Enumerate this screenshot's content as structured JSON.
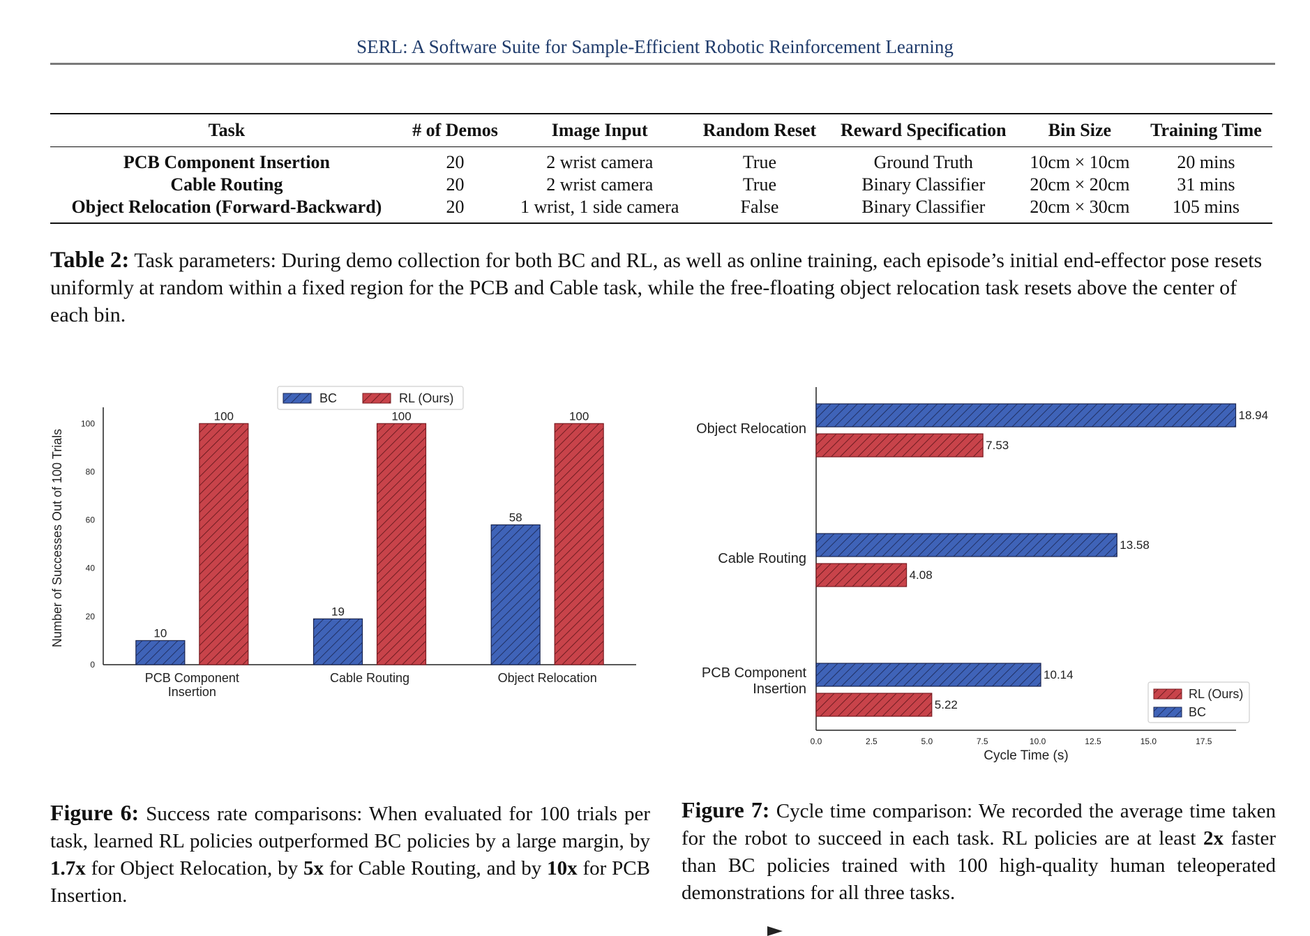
{
  "header": {
    "title": "SERL: A Software Suite for Sample-Efficient Robotic Reinforcement Learning"
  },
  "table": {
    "columns": [
      "Task",
      "# of Demos",
      "Image Input",
      "Random Reset",
      "Reward Specification",
      "Bin Size",
      "Training Time"
    ],
    "rows": [
      [
        "PCB Component Insertion",
        "20",
        "2 wrist camera",
        "True",
        "Ground Truth",
        "10cm × 10cm",
        "20 mins"
      ],
      [
        "Cable Routing",
        "20",
        "2 wrist camera",
        "True",
        "Binary Classifier",
        "20cm × 20cm",
        "31 mins"
      ],
      [
        "Object Relocation (Forward-Backward)",
        "20",
        "1 wrist, 1 side camera",
        "False",
        "Binary Classifier",
        "20cm × 30cm",
        "105 mins"
      ]
    ],
    "caption_label": "Table 2:",
    "caption_text": " Task parameters: During demo collection for both BC and RL, as well as online training, each episode’s initial end-effector pose resets uniformly at random within a fixed region for the PCB and Cable task, while the free-floating object relocation task resets above the center of each bin."
  },
  "figure6": {
    "caption_label": "Figure 6:",
    "caption_part1": " Success rate comparisons: When evaluated for 100 trials per task, learned RL policies outperformed BC policies by a large margin, by ",
    "caption_b1": "1.7x",
    "caption_part2": " for Object Relocation, by ",
    "caption_b2": "5x",
    "caption_part3": " for Cable Routing, and by ",
    "caption_b3": "10x",
    "caption_part4": " for PCB Insertion."
  },
  "figure7": {
    "caption_label": "Figure 7:",
    "caption_part1": " Cycle time comparison: We recorded the average time taken for the robot to succeed in each task. RL policies are at least ",
    "caption_b1": "2x",
    "caption_part2": " faster than BC policies trained with 100 high-quality human teleoperated demonstrations for all three tasks."
  },
  "colors": {
    "bc": "#3f63b8",
    "rl": "#c8434a",
    "header": "#1f3b6b"
  },
  "chart_data": [
    {
      "type": "bar",
      "categories": [
        "PCB Component\nInsertion",
        "Cable Routing",
        "Object Relocation"
      ],
      "series": [
        {
          "name": "BC",
          "values": [
            10,
            19,
            58
          ]
        },
        {
          "name": "RL (Ours)",
          "values": [
            100,
            100,
            100
          ]
        }
      ],
      "ylabel": "Number of Successes Out of 100 Trials",
      "xlabel": "",
      "ylim": [
        0,
        105
      ],
      "yticks": [
        "0",
        "20",
        "40",
        "60",
        "80",
        "100"
      ],
      "legend": "top-center",
      "grid": false
    },
    {
      "type": "bar",
      "orientation": "horizontal",
      "categories": [
        "Object Relocation",
        "Cable Routing",
        "PCB Component\nInsertion"
      ],
      "series": [
        {
          "name": "BC",
          "values": [
            18.94,
            13.58,
            10.14
          ]
        },
        {
          "name": "RL (Ours)",
          "values": [
            7.53,
            4.08,
            5.22
          ]
        }
      ],
      "xlabel": "Cycle Time (s)",
      "xlim": [
        0,
        19.9
      ],
      "xticks": [
        "0.0",
        "2.5",
        "5.0",
        "7.5",
        "10.0",
        "12.5",
        "15.0",
        "17.5"
      ],
      "legend": "bottom-right",
      "grid": false
    }
  ]
}
